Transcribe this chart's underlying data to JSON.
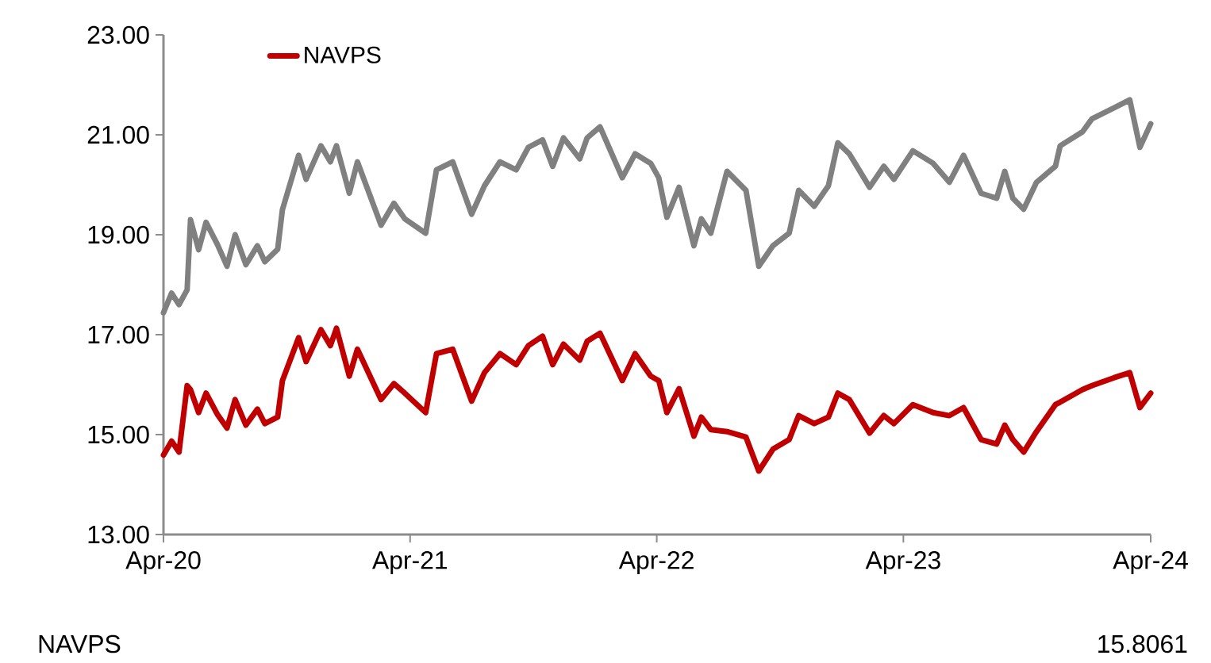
{
  "chart_data": {
    "type": "line",
    "x": [
      "2020-04-01",
      "2020-04-13",
      "2020-04-24",
      "2020-05-06",
      "2020-05-11",
      "2020-05-23",
      "2020-06-03",
      "2020-06-20",
      "2020-07-04",
      "2020-07-16",
      "2020-08-01",
      "2020-08-18",
      "2020-08-29",
      "2020-09-17",
      "2020-09-24",
      "2020-10-18",
      "2020-10-29",
      "2020-11-20",
      "2020-12-04",
      "2020-12-13",
      "2021-01-01",
      "2021-01-13",
      "2021-02-17",
      "2021-03-08",
      "2021-03-24",
      "2021-04-24",
      "2021-05-10",
      "2021-06-03",
      "2021-07-01",
      "2021-07-20",
      "2021-08-12",
      "2021-09-05",
      "2021-09-23",
      "2021-10-14",
      "2021-10-29",
      "2021-11-14",
      "2021-12-08",
      "2021-12-19",
      "2022-01-07",
      "2022-02-09",
      "2022-02-28",
      "2022-03-23",
      "2022-04-04",
      "2022-04-16",
      "2022-05-04",
      "2022-05-26",
      "2022-06-06",
      "2022-06-20",
      "2022-07-14",
      "2022-08-11",
      "2022-08-30",
      "2022-09-20",
      "2022-10-14",
      "2022-10-28",
      "2022-11-20",
      "2022-12-11",
      "2022-12-25",
      "2023-01-11",
      "2023-02-10",
      "2023-03-03",
      "2023-03-18",
      "2023-04-15",
      "2023-05-15",
      "2023-06-08",
      "2023-06-29",
      "2023-07-25",
      "2023-08-17",
      "2023-08-29",
      "2023-09-10",
      "2023-09-26",
      "2023-10-15",
      "2023-11-12",
      "2023-11-19",
      "2023-12-22",
      "2024-01-05",
      "2024-02-07",
      "2024-03-01",
      "2024-03-16",
      "2024-04-01"
    ],
    "series": [
      {
        "color": "#808080",
        "values": [
          17.44,
          17.83,
          17.6,
          17.9,
          19.3,
          18.7,
          19.25,
          18.8,
          18.37,
          19.0,
          18.4,
          18.78,
          18.46,
          18.71,
          19.5,
          20.59,
          20.11,
          20.78,
          20.46,
          20.78,
          19.83,
          20.46,
          19.19,
          19.63,
          19.32,
          19.03,
          20.3,
          20.46,
          19.41,
          19.98,
          20.46,
          20.3,
          20.75,
          20.9,
          20.37,
          20.94,
          20.52,
          20.94,
          21.16,
          20.14,
          20.62,
          20.43,
          20.14,
          19.35,
          19.95,
          18.78,
          19.32,
          19.03,
          20.27,
          19.89,
          18.37,
          18.78,
          19.03,
          19.89,
          19.57,
          19.98,
          20.84,
          20.62,
          19.95,
          20.37,
          20.11,
          20.68,
          20.43,
          20.05,
          20.59,
          19.83,
          19.73,
          20.27,
          19.73,
          19.51,
          20.05,
          20.37,
          20.78,
          21.06,
          21.32,
          21.54,
          21.7,
          20.75,
          21.22
        ]
      },
      {
        "name": "NAVPS",
        "color": "#c00000",
        "values": [
          14.59,
          14.87,
          14.65,
          15.98,
          15.9,
          15.44,
          15.83,
          15.4,
          15.13,
          15.7,
          15.19,
          15.51,
          15.22,
          15.35,
          16.08,
          16.94,
          16.46,
          17.1,
          16.78,
          17.13,
          16.17,
          16.71,
          15.7,
          16.02,
          15.83,
          15.44,
          16.62,
          16.71,
          15.67,
          16.24,
          16.62,
          16.4,
          16.78,
          16.97,
          16.4,
          16.81,
          16.49,
          16.87,
          17.03,
          16.08,
          16.62,
          16.17,
          16.08,
          15.44,
          15.92,
          14.97,
          15.35,
          15.1,
          15.06,
          14.95,
          14.27,
          14.71,
          14.9,
          15.38,
          15.22,
          15.35,
          15.83,
          15.7,
          15.03,
          15.38,
          15.22,
          15.6,
          15.44,
          15.38,
          15.54,
          14.9,
          14.81,
          15.19,
          14.9,
          14.65,
          15.06,
          15.6,
          15.65,
          15.9,
          15.98,
          16.14,
          16.24,
          15.54,
          15.83
        ]
      }
    ],
    "xlim": [
      "2020-04-01",
      "2024-04-01"
    ],
    "xticks": [
      {
        "value": "2020-04-01",
        "label": "Apr-20"
      },
      {
        "value": "2021-04-01",
        "label": "Apr-21"
      },
      {
        "value": "2022-04-01",
        "label": "Apr-22"
      },
      {
        "value": "2023-04-01",
        "label": "Apr-23"
      },
      {
        "value": "2024-04-01",
        "label": "Apr-24"
      }
    ],
    "ylim": [
      13,
      23
    ],
    "yticks": [
      {
        "value": 13,
        "label": "13.00"
      },
      {
        "value": 15,
        "label": "15.00"
      },
      {
        "value": 17,
        "label": "17.00"
      },
      {
        "value": 19,
        "label": "19.00"
      },
      {
        "value": 21,
        "label": "21.00"
      },
      {
        "value": 23,
        "label": "23.00"
      }
    ],
    "legend": "top left",
    "line_style": "solid",
    "annotations": [
      "NAVPS",
      "15.8061"
    ]
  }
}
